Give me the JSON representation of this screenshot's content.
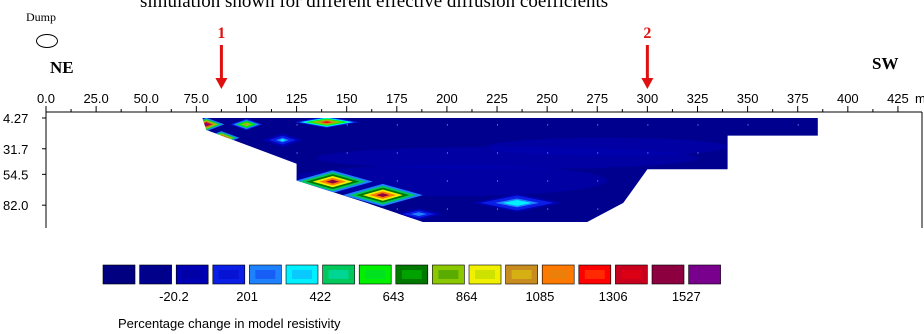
{
  "figure": {
    "caption": "simulation shown for different effective diffusion coefficients",
    "dump_label": "Dump",
    "direction_left": "NE",
    "direction_right": "SW",
    "markers": [
      {
        "label": "1",
        "x": 87.5
      },
      {
        "label": "2",
        "x": 300
      }
    ]
  },
  "chart_data": {
    "type": "heatmap",
    "x_unit": "m",
    "x_ticks": [
      0.0,
      25.0,
      50.0,
      75.0,
      100,
      125,
      150,
      175,
      200,
      225,
      250,
      275,
      300,
      325,
      350,
      375,
      400,
      425
    ],
    "x_tick_labels": [
      "0.0",
      "25.0",
      "50.0",
      "75.0",
      "100",
      "125",
      "150",
      "175",
      "200",
      "225",
      "250",
      "275",
      "300",
      "325",
      "350",
      "375",
      "400",
      "425"
    ],
    "xlim": [
      0,
      437
    ],
    "y_ticks": [
      4.27,
      31.7,
      54.5,
      82.0
    ],
    "y_tick_labels": [
      "4.27",
      "31.7",
      "54.5",
      "82.0"
    ],
    "ylim": [
      4.27,
      97
    ],
    "section_outline": [
      [
        78,
        4.27
      ],
      [
        385,
        4.27
      ],
      [
        385,
        20
      ],
      [
        340,
        20
      ],
      [
        340,
        50
      ],
      [
        300,
        50
      ],
      [
        288,
        80
      ],
      [
        270,
        97
      ],
      [
        188,
        97
      ],
      [
        160,
        80
      ],
      [
        125,
        60
      ],
      [
        125,
        45
      ],
      [
        80,
        15
      ]
    ],
    "background_value": -150,
    "anomalies": [
      {
        "x": 80,
        "y": 10,
        "value": 1500,
        "rx": 9,
        "ry": 6
      },
      {
        "x": 87.5,
        "y": 22,
        "value": 1527,
        "rx": 9,
        "ry": 6
      },
      {
        "x": 100,
        "y": 10,
        "value": 864,
        "rx": 8,
        "ry": 5
      },
      {
        "x": 140,
        "y": 8,
        "value": 1085,
        "rx": 16,
        "ry": 5
      },
      {
        "x": 143,
        "y": 61,
        "value": 1306,
        "rx": 20,
        "ry": 10
      },
      {
        "x": 168,
        "y": 73,
        "value": 1306,
        "rx": 20,
        "ry": 10
      },
      {
        "x": 118,
        "y": 24,
        "value": 201,
        "rx": 10,
        "ry": 6
      },
      {
        "x": 235,
        "y": 80,
        "value": 300,
        "rx": 22,
        "ry": 8
      },
      {
        "x": 186,
        "y": 90,
        "value": 140,
        "rx": 12,
        "ry": 5
      }
    ],
    "legend": {
      "title": "Percentage change in model resistivity",
      "colors": [
        "#000080",
        "#00008f",
        "#0000b4",
        "#0a1ee6",
        "#1e82ff",
        "#00f0ff",
        "#00c85a",
        "#00f000",
        "#007800",
        "#8cc800",
        "#f0f000",
        "#c88c1e",
        "#ff7800",
        "#ff0000",
        "#c8001e",
        "#8c0040",
        "#78008c"
      ],
      "labels": [
        "-20.2",
        "201",
        "422",
        "643",
        "864",
        "1085",
        "1306",
        "1527"
      ],
      "label_after_box": [
        1,
        3,
        5,
        7,
        9,
        11,
        13,
        15
      ],
      "bin_edges": [
        -352,
        -241,
        -131,
        -20.2,
        90,
        201,
        311,
        422,
        532,
        643,
        753,
        864,
        974,
        1085,
        1195,
        1306,
        1416,
        1527
      ]
    }
  }
}
